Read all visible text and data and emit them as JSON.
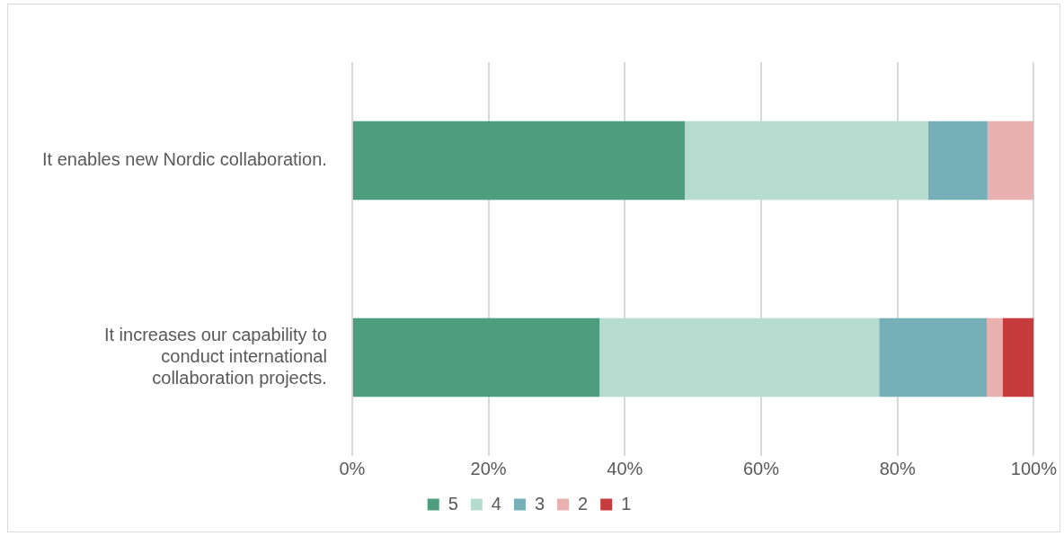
{
  "chart_data": {
    "type": "bar",
    "orientation": "horizontal",
    "stacked": true,
    "categories": [
      "It enables new Nordic collaboration.",
      "It increases our capability to conduct international collaboration projects."
    ],
    "series": [
      {
        "name": "5",
        "color": "#4e9d7f",
        "values": [
          48.8,
          36.3
        ]
      },
      {
        "name": "4",
        "color": "#b6dbcf",
        "values": [
          35.7,
          41.0
        ]
      },
      {
        "name": "3",
        "color": "#77afb8",
        "values": [
          8.7,
          15.8
        ]
      },
      {
        "name": "2",
        "color": "#e8b0ae",
        "values": [
          6.8,
          2.3
        ]
      },
      {
        "name": "1",
        "color": "#c63b3b",
        "values": [
          0,
          4.6
        ]
      }
    ],
    "xlim": [
      0,
      100
    ],
    "xticks": [
      {
        "value": 0,
        "label": "0%"
      },
      {
        "value": 20,
        "label": "20%"
      },
      {
        "value": 40,
        "label": "40%"
      },
      {
        "value": 60,
        "label": "60%"
      },
      {
        "value": 80,
        "label": "80%"
      },
      {
        "value": 100,
        "label": "100%"
      }
    ],
    "grid": "x",
    "legend": "bottom"
  }
}
